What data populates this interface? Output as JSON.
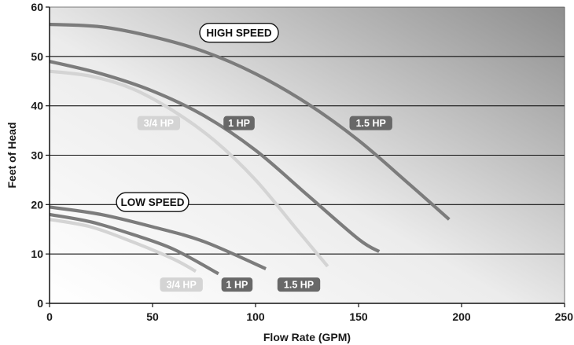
{
  "chart_data": {
    "type": "line",
    "xlabel": "Flow Rate (GPM)",
    "ylabel": "Feet of Head",
    "xlim": [
      0,
      250
    ],
    "ylim": [
      0,
      60
    ],
    "x_ticks": [
      0,
      50,
      100,
      150,
      200,
      250
    ],
    "y_ticks": [
      0,
      10,
      20,
      30,
      40,
      50,
      60
    ],
    "grid": "horizontal",
    "annotations": {
      "high_speed": "HIGH SPEED",
      "low_speed": "LOW SPEED"
    },
    "series": [
      {
        "name": "3/4 HP",
        "speed": "high",
        "color": "#d4d4d4",
        "x": [
          0,
          20,
          40,
          60,
          80,
          100,
          120,
          135
        ],
        "y": [
          47,
          46,
          43.5,
          39,
          33,
          25,
          15,
          7.5
        ]
      },
      {
        "name": "1 HP",
        "speed": "high",
        "color": "#7c7c7c",
        "x": [
          0,
          25,
          50,
          75,
          100,
          125,
          150,
          160
        ],
        "y": [
          49,
          46.5,
          43,
          38,
          31,
          22,
          13,
          10.5
        ]
      },
      {
        "name": "1.5 HP",
        "speed": "high",
        "color": "#7c7c7c",
        "x": [
          0,
          25,
          50,
          75,
          100,
          125,
          150,
          175,
          194
        ],
        "y": [
          56.5,
          56,
          54,
          51,
          46.5,
          40.5,
          33,
          24,
          17
        ]
      },
      {
        "name": "3/4 HP",
        "speed": "low",
        "color": "#d4d4d4",
        "x": [
          0,
          20,
          40,
          60,
          71
        ],
        "y": [
          17,
          15.5,
          12.5,
          9,
          6.5
        ]
      },
      {
        "name": "1 HP",
        "speed": "low",
        "color": "#7c7c7c",
        "x": [
          0,
          20,
          40,
          60,
          82
        ],
        "y": [
          18,
          16.5,
          14,
          11,
          6
        ]
      },
      {
        "name": "1.5 HP",
        "speed": "low",
        "color": "#7c7c7c",
        "x": [
          0,
          25,
          50,
          75,
          105
        ],
        "y": [
          19.5,
          18,
          15.5,
          12.5,
          7
        ]
      }
    ],
    "series_labels": [
      {
        "text": "3/4 HP",
        "speed": "high",
        "color": "#d4d4d4",
        "x": 53,
        "y": 36.5
      },
      {
        "text": "1 HP",
        "speed": "high",
        "color": "#686868",
        "x": 92,
        "y": 36.5
      },
      {
        "text": "1.5 HP",
        "speed": "high",
        "color": "#686868",
        "x": 156,
        "y": 36.5
      },
      {
        "text": "3/4 HP",
        "speed": "low",
        "color": "#d4d4d4",
        "x": 64,
        "y": 3.8
      },
      {
        "text": "1 HP",
        "speed": "low",
        "color": "#686868",
        "x": 91,
        "y": 3.8
      },
      {
        "text": "1.5 HP",
        "speed": "low",
        "color": "#686868",
        "x": 121,
        "y": 3.8
      }
    ]
  }
}
